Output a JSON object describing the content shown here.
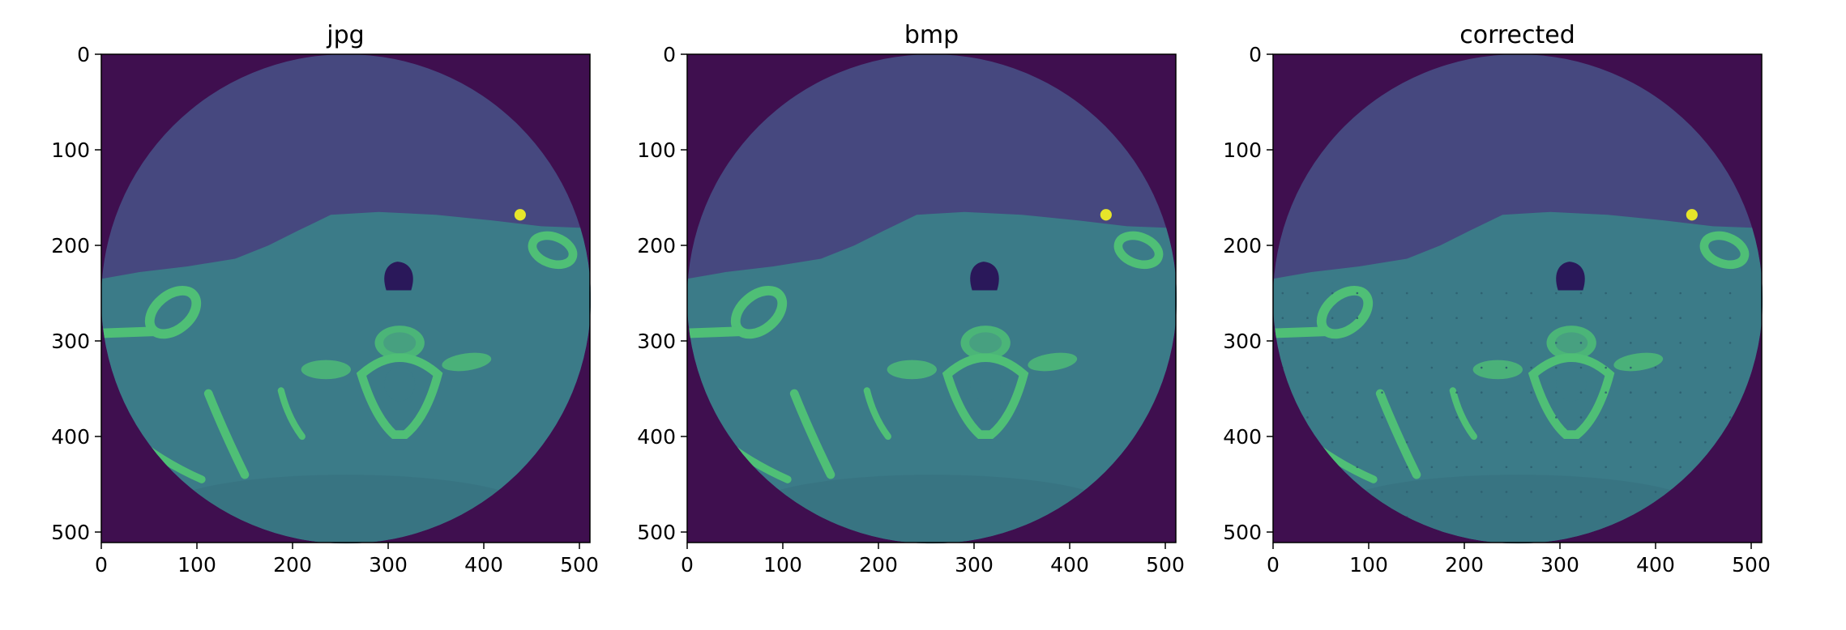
{
  "figure": {
    "panels": [
      {
        "title": "jpg",
        "artifact": "none"
      },
      {
        "title": "bmp",
        "artifact": "none"
      },
      {
        "title": "corrected",
        "artifact": "dots"
      }
    ]
  },
  "chart_data": [
    {
      "type": "heatmap",
      "title": "jpg",
      "xlabel": "",
      "ylabel": "",
      "xlim": [
        0,
        511
      ],
      "ylim": [
        511,
        0
      ],
      "xticks": [
        0,
        100,
        200,
        300,
        400,
        500
      ],
      "yticks": [
        0,
        100,
        200,
        300,
        400,
        500
      ],
      "colormap": "viridis",
      "image_size": [
        512,
        512
      ],
      "content": "axial CT slice inside circular field of view"
    },
    {
      "type": "heatmap",
      "title": "bmp",
      "xlabel": "",
      "ylabel": "",
      "xlim": [
        0,
        511
      ],
      "ylim": [
        511,
        0
      ],
      "xticks": [
        0,
        100,
        200,
        300,
        400,
        500
      ],
      "yticks": [
        0,
        100,
        200,
        300,
        400,
        500
      ],
      "colormap": "viridis",
      "image_size": [
        512,
        512
      ],
      "content": "axial CT slice inside circular field of view"
    },
    {
      "type": "heatmap",
      "title": "corrected",
      "xlabel": "",
      "ylabel": "",
      "xlim": [
        0,
        511
      ],
      "ylim": [
        511,
        0
      ],
      "xticks": [
        0,
        100,
        200,
        300,
        400,
        500
      ],
      "yticks": [
        0,
        100,
        200,
        300,
        400,
        500
      ],
      "colormap": "viridis",
      "image_size": [
        512,
        512
      ],
      "content": "axial CT slice inside circular field of view"
    }
  ],
  "colors": {
    "background": "#3f0f4f",
    "fov_air": "#46487f",
    "soft_tissue": "#3b7b88",
    "bone": "#4fbf76",
    "bright": "#e6e52a",
    "dark_cavity": "#2a185a"
  }
}
